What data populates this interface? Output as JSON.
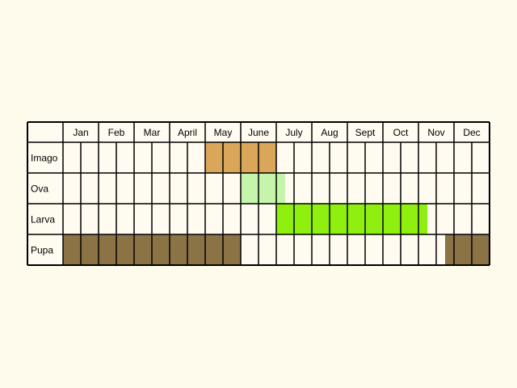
{
  "chart_data": {
    "type": "table",
    "months": [
      "Jan",
      "Feb",
      "Mar",
      "April",
      "May",
      "June",
      "July",
      "Aug",
      "Sept",
      "Oct",
      "Nov",
      "Dec"
    ],
    "stages": [
      {
        "name": "Imago",
        "color": "#daa65a",
        "periods": [
          [
            4.0,
            6.0
          ]
        ]
      },
      {
        "name": "Ova",
        "color": "#c5f5ab",
        "periods": [
          [
            5.0,
            6.25
          ]
        ]
      },
      {
        "name": "Larva",
        "color": "#8fef0f",
        "periods": [
          [
            6.0,
            10.25
          ]
        ]
      },
      {
        "name": "Pupa",
        "color": "#8b7345",
        "periods": [
          [
            0.0,
            5.0
          ],
          [
            10.75,
            12.0
          ]
        ]
      }
    ],
    "grid": true
  },
  "colors": {
    "background": "#fefbed",
    "cell": "#fffbf0",
    "border": "#000000"
  }
}
